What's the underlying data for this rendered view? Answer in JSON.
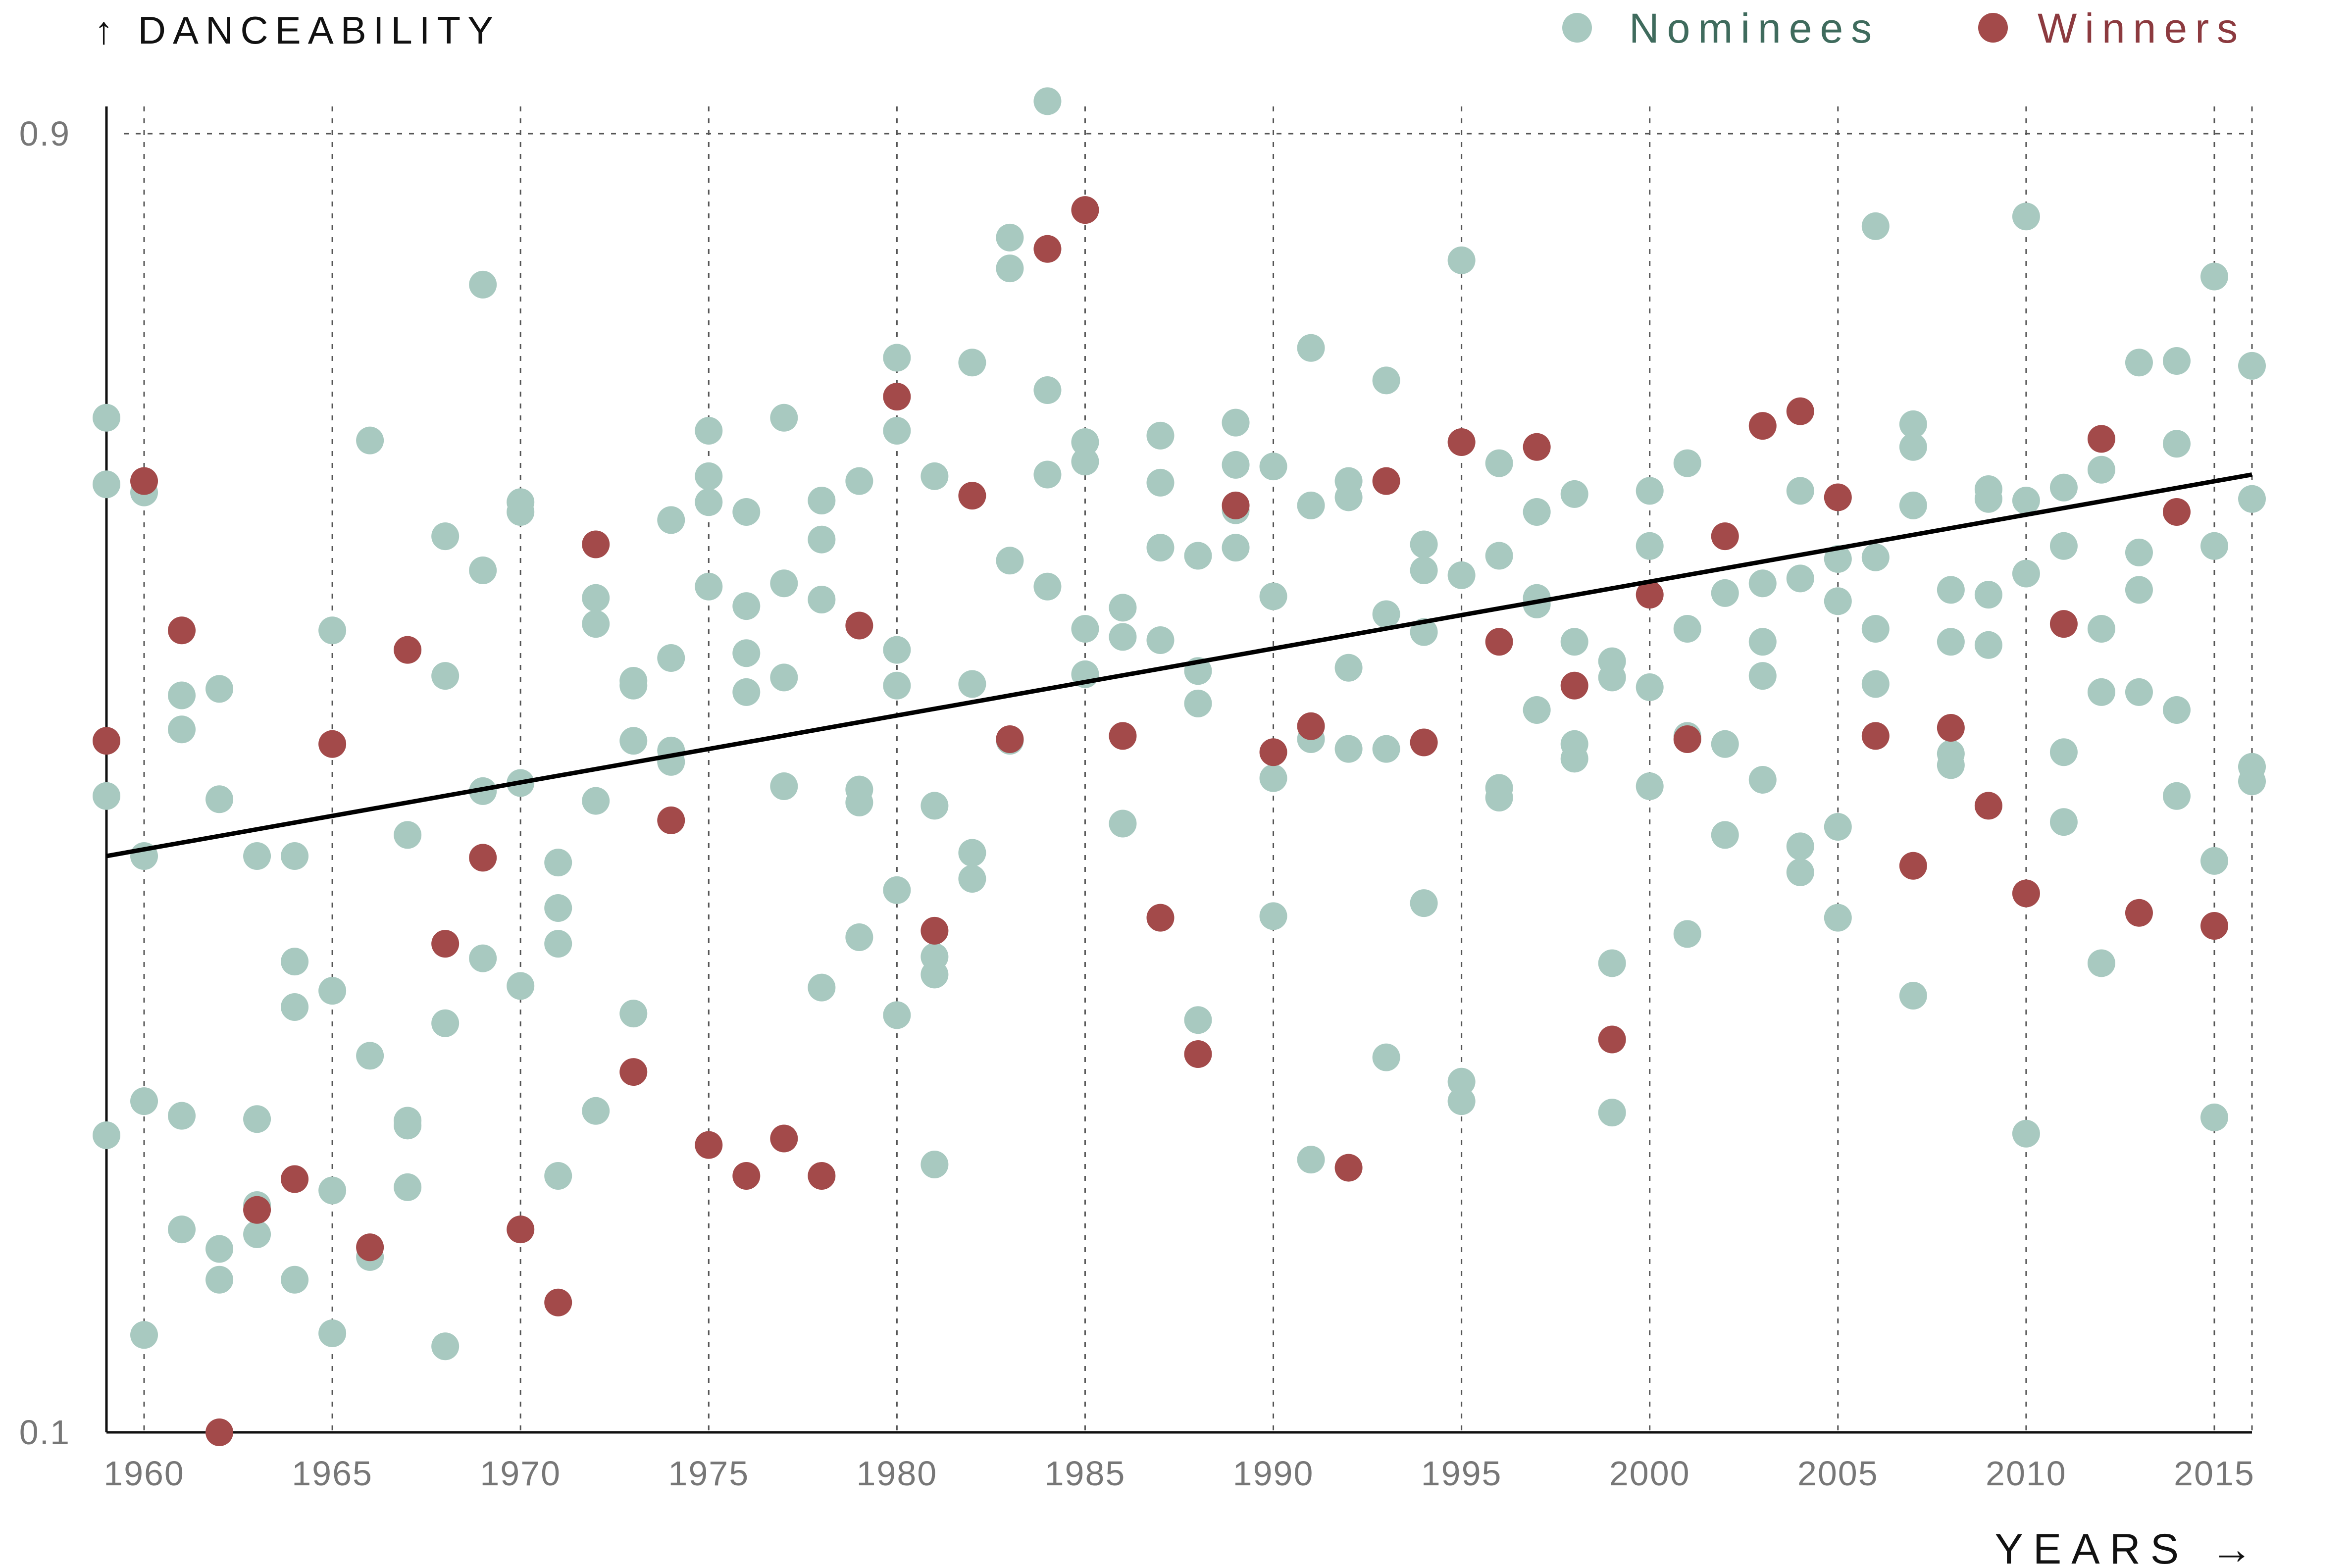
{
  "chart_data": {
    "type": "scatter",
    "ylabel": "↑ DANCEABILITY",
    "xlabel": "YEARS →",
    "xlim": [
      1959,
      2016
    ],
    "ylim": [
      0.1,
      0.9
    ],
    "y_ticks": [
      0.9,
      0.1
    ],
    "y_tick_labels": [
      "0.9",
      "0.1"
    ],
    "x_ticks": [
      1960,
      1965,
      1970,
      1975,
      1980,
      1985,
      1990,
      1995,
      2000,
      2005,
      2010,
      2015
    ],
    "x_tick_labels": [
      "1960",
      "1965",
      "1970",
      "1975",
      "1980",
      "1985",
      "1990",
      "1995",
      "2000",
      "2005",
      "2010",
      "2015"
    ],
    "grid": {
      "vertical": true,
      "horizontal_top": true
    },
    "legend": {
      "placement": "top-right"
    },
    "trend_line": {
      "x": [
        1959,
        2016
      ],
      "y": [
        0.455,
        0.69
      ]
    },
    "colors": {
      "nominees": "#a8c9c0",
      "winners": "#a34a4a",
      "nominees_text": "#3f6b5d",
      "winners_text": "#8c3a3f",
      "trend": "#000000"
    },
    "series": [
      {
        "name": "Nominees",
        "points": [
          [
            1959,
            0.725
          ],
          [
            1959,
            0.684
          ],
          [
            1959,
            0.492
          ],
          [
            1959,
            0.283
          ],
          [
            1960,
            0.679
          ],
          [
            1960,
            0.455
          ],
          [
            1960,
            0.304
          ],
          [
            1960,
            0.16
          ],
          [
            1961,
            0.554
          ],
          [
            1961,
            0.533
          ],
          [
            1961,
            0.295
          ],
          [
            1961,
            0.225
          ],
          [
            1962,
            0.558
          ],
          [
            1962,
            0.49
          ],
          [
            1962,
            0.213
          ],
          [
            1962,
            0.194
          ],
          [
            1963,
            0.455
          ],
          [
            1963,
            0.293
          ],
          [
            1963,
            0.24
          ],
          [
            1963,
            0.222
          ],
          [
            1964,
            0.455
          ],
          [
            1964,
            0.39
          ],
          [
            1964,
            0.362
          ],
          [
            1964,
            0.194
          ],
          [
            1965,
            0.594
          ],
          [
            1965,
            0.372
          ],
          [
            1965,
            0.249
          ],
          [
            1965,
            0.161
          ],
          [
            1966,
            0.711
          ],
          [
            1966,
            0.332
          ],
          [
            1966,
            0.208
          ],
          [
            1967,
            0.468
          ],
          [
            1967,
            0.292
          ],
          [
            1967,
            0.289
          ],
          [
            1967,
            0.251
          ],
          [
            1968,
            0.652
          ],
          [
            1968,
            0.566
          ],
          [
            1968,
            0.352
          ],
          [
            1968,
            0.153
          ],
          [
            1969,
            0.807
          ],
          [
            1969,
            0.631
          ],
          [
            1969,
            0.495
          ],
          [
            1969,
            0.392
          ],
          [
            1970,
            0.673
          ],
          [
            1970,
            0.667
          ],
          [
            1970,
            0.5
          ],
          [
            1970,
            0.375
          ],
          [
            1971,
            0.451
          ],
          [
            1971,
            0.423
          ],
          [
            1971,
            0.401
          ],
          [
            1971,
            0.258
          ],
          [
            1972,
            0.614
          ],
          [
            1972,
            0.598
          ],
          [
            1972,
            0.489
          ],
          [
            1972,
            0.298
          ],
          [
            1973,
            0.563
          ],
          [
            1973,
            0.56
          ],
          [
            1973,
            0.526
          ],
          [
            1973,
            0.358
          ],
          [
            1974,
            0.662
          ],
          [
            1974,
            0.577
          ],
          [
            1974,
            0.52
          ],
          [
            1974,
            0.513
          ],
          [
            1975,
            0.717
          ],
          [
            1975,
            0.689
          ],
          [
            1975,
            0.673
          ],
          [
            1975,
            0.621
          ],
          [
            1976,
            0.667
          ],
          [
            1976,
            0.609
          ],
          [
            1976,
            0.58
          ],
          [
            1976,
            0.556
          ],
          [
            1977,
            0.725
          ],
          [
            1977,
            0.623
          ],
          [
            1977,
            0.565
          ],
          [
            1977,
            0.498
          ],
          [
            1978,
            0.674
          ],
          [
            1978,
            0.65
          ],
          [
            1978,
            0.613
          ],
          [
            1978,
            0.374
          ],
          [
            1979,
            0.686
          ],
          [
            1979,
            0.496
          ],
          [
            1979,
            0.488
          ],
          [
            1979,
            0.405
          ],
          [
            1980,
            0.762
          ],
          [
            1980,
            0.717
          ],
          [
            1980,
            0.582
          ],
          [
            1980,
            0.56
          ],
          [
            1980,
            0.434
          ],
          [
            1980,
            0.357
          ],
          [
            1981,
            0.689
          ],
          [
            1981,
            0.486
          ],
          [
            1981,
            0.393
          ],
          [
            1981,
            0.382
          ],
          [
            1981,
            0.265
          ],
          [
            1982,
            0.759
          ],
          [
            1982,
            0.561
          ],
          [
            1982,
            0.457
          ],
          [
            1982,
            0.441
          ],
          [
            1983,
            0.836
          ],
          [
            1983,
            0.817
          ],
          [
            1983,
            0.637
          ],
          [
            1983,
            0.526
          ],
          [
            1984,
            0.92
          ],
          [
            1984,
            0.742
          ],
          [
            1984,
            0.69
          ],
          [
            1984,
            0.621
          ],
          [
            1985,
            0.71
          ],
          [
            1985,
            0.698
          ],
          [
            1985,
            0.595
          ],
          [
            1985,
            0.567
          ],
          [
            1986,
            0.608
          ],
          [
            1986,
            0.59
          ],
          [
            1986,
            0.475
          ],
          [
            1987,
            0.714
          ],
          [
            1987,
            0.685
          ],
          [
            1987,
            0.645
          ],
          [
            1987,
            0.588
          ],
          [
            1988,
            0.64
          ],
          [
            1988,
            0.569
          ],
          [
            1988,
            0.549
          ],
          [
            1988,
            0.354
          ],
          [
            1989,
            0.722
          ],
          [
            1989,
            0.696
          ],
          [
            1989,
            0.668
          ],
          [
            1989,
            0.645
          ],
          [
            1990,
            0.695
          ],
          [
            1990,
            0.615
          ],
          [
            1990,
            0.503
          ],
          [
            1990,
            0.418
          ],
          [
            1991,
            0.768
          ],
          [
            1991,
            0.671
          ],
          [
            1991,
            0.527
          ],
          [
            1991,
            0.268
          ],
          [
            1992,
            0.686
          ],
          [
            1992,
            0.676
          ],
          [
            1992,
            0.571
          ],
          [
            1992,
            0.521
          ],
          [
            1993,
            0.748
          ],
          [
            1993,
            0.604
          ],
          [
            1993,
            0.521
          ],
          [
            1993,
            0.331
          ],
          [
            1994,
            0.647
          ],
          [
            1994,
            0.631
          ],
          [
            1994,
            0.593
          ],
          [
            1994,
            0.426
          ],
          [
            1995,
            0.822
          ],
          [
            1995,
            0.628
          ],
          [
            1995,
            0.316
          ],
          [
            1995,
            0.304
          ],
          [
            1996,
            0.697
          ],
          [
            1996,
            0.64
          ],
          [
            1996,
            0.497
          ],
          [
            1996,
            0.491
          ],
          [
            1997,
            0.667
          ],
          [
            1997,
            0.614
          ],
          [
            1997,
            0.61
          ],
          [
            1997,
            0.545
          ],
          [
            1998,
            0.678
          ],
          [
            1998,
            0.587
          ],
          [
            1998,
            0.524
          ],
          [
            1998,
            0.515
          ],
          [
            1999,
            0.575
          ],
          [
            1999,
            0.565
          ],
          [
            1999,
            0.389
          ],
          [
            1999,
            0.297
          ],
          [
            2000,
            0.68
          ],
          [
            2000,
            0.646
          ],
          [
            2000,
            0.559
          ],
          [
            2000,
            0.498
          ],
          [
            2001,
            0.697
          ],
          [
            2001,
            0.595
          ],
          [
            2001,
            0.529
          ],
          [
            2001,
            0.407
          ],
          [
            2002,
            0.617
          ],
          [
            2002,
            0.524
          ],
          [
            2002,
            0.468
          ],
          [
            2003,
            0.623
          ],
          [
            2003,
            0.587
          ],
          [
            2003,
            0.566
          ],
          [
            2003,
            0.502
          ],
          [
            2004,
            0.68
          ],
          [
            2004,
            0.626
          ],
          [
            2004,
            0.461
          ],
          [
            2004,
            0.445
          ],
          [
            2005,
            0.638
          ],
          [
            2005,
            0.612
          ],
          [
            2005,
            0.473
          ],
          [
            2005,
            0.417
          ],
          [
            2006,
            0.843
          ],
          [
            2006,
            0.639
          ],
          [
            2006,
            0.595
          ],
          [
            2006,
            0.561
          ],
          [
            2007,
            0.721
          ],
          [
            2007,
            0.707
          ],
          [
            2007,
            0.671
          ],
          [
            2007,
            0.369
          ],
          [
            2008,
            0.619
          ],
          [
            2008,
            0.587
          ],
          [
            2008,
            0.518
          ],
          [
            2008,
            0.511
          ],
          [
            2009,
            0.681
          ],
          [
            2009,
            0.675
          ],
          [
            2009,
            0.616
          ],
          [
            2009,
            0.585
          ],
          [
            2010,
            0.849
          ],
          [
            2010,
            0.674
          ],
          [
            2010,
            0.629
          ],
          [
            2010,
            0.284
          ],
          [
            2011,
            0.682
          ],
          [
            2011,
            0.646
          ],
          [
            2011,
            0.519
          ],
          [
            2011,
            0.476
          ],
          [
            2012,
            0.693
          ],
          [
            2012,
            0.595
          ],
          [
            2012,
            0.556
          ],
          [
            2012,
            0.389
          ],
          [
            2013,
            0.759
          ],
          [
            2013,
            0.642
          ],
          [
            2013,
            0.619
          ],
          [
            2013,
            0.556
          ],
          [
            2014,
            0.76
          ],
          [
            2014,
            0.709
          ],
          [
            2014,
            0.545
          ],
          [
            2014,
            0.492
          ],
          [
            2015,
            0.812
          ],
          [
            2015,
            0.646
          ],
          [
            2015,
            0.452
          ],
          [
            2015,
            0.294
          ],
          [
            2016,
            0.757
          ],
          [
            2016,
            0.675
          ],
          [
            2016,
            0.51
          ],
          [
            2016,
            0.501
          ]
        ]
      },
      {
        "name": "Winners",
        "points": [
          [
            1959,
            0.526
          ],
          [
            1960,
            0.686
          ],
          [
            1961,
            0.594
          ],
          [
            1962,
            0.1
          ],
          [
            1963,
            0.237
          ],
          [
            1964,
            0.256
          ],
          [
            1965,
            0.524
          ],
          [
            1966,
            0.214
          ],
          [
            1967,
            0.582
          ],
          [
            1968,
            0.401
          ],
          [
            1969,
            0.454
          ],
          [
            1970,
            0.225
          ],
          [
            1971,
            0.18
          ],
          [
            1972,
            0.647
          ],
          [
            1973,
            0.322
          ],
          [
            1974,
            0.477
          ],
          [
            1975,
            0.277
          ],
          [
            1976,
            0.258
          ],
          [
            1977,
            0.281
          ],
          [
            1978,
            0.258
          ],
          [
            1979,
            0.597
          ],
          [
            1980,
            0.738
          ],
          [
            1981,
            0.409
          ],
          [
            1982,
            0.677
          ],
          [
            1983,
            0.527
          ],
          [
            1984,
            0.829
          ],
          [
            1985,
            0.853
          ],
          [
            1986,
            0.529
          ],
          [
            1987,
            0.417
          ],
          [
            1988,
            0.333
          ],
          [
            1989,
            0.671
          ],
          [
            1990,
            0.519
          ],
          [
            1991,
            0.535
          ],
          [
            1992,
            0.263
          ],
          [
            1993,
            0.686
          ],
          [
            1994,
            0.525
          ],
          [
            1995,
            0.71
          ],
          [
            1996,
            0.587
          ],
          [
            1997,
            0.707
          ],
          [
            1998,
            0.56
          ],
          [
            1999,
            0.342
          ],
          [
            2000,
            0.616
          ],
          [
            2001,
            0.527
          ],
          [
            2002,
            0.652
          ],
          [
            2003,
            0.72
          ],
          [
            2004,
            0.729
          ],
          [
            2005,
            0.676
          ],
          [
            2006,
            0.529
          ],
          [
            2007,
            0.449
          ],
          [
            2008,
            0.534
          ],
          [
            2009,
            0.486
          ],
          [
            2010,
            0.432
          ],
          [
            2011,
            0.598
          ],
          [
            2012,
            0.712
          ],
          [
            2013,
            0.42
          ],
          [
            2014,
            0.667
          ],
          [
            2015,
            0.412
          ]
        ]
      }
    ]
  }
}
